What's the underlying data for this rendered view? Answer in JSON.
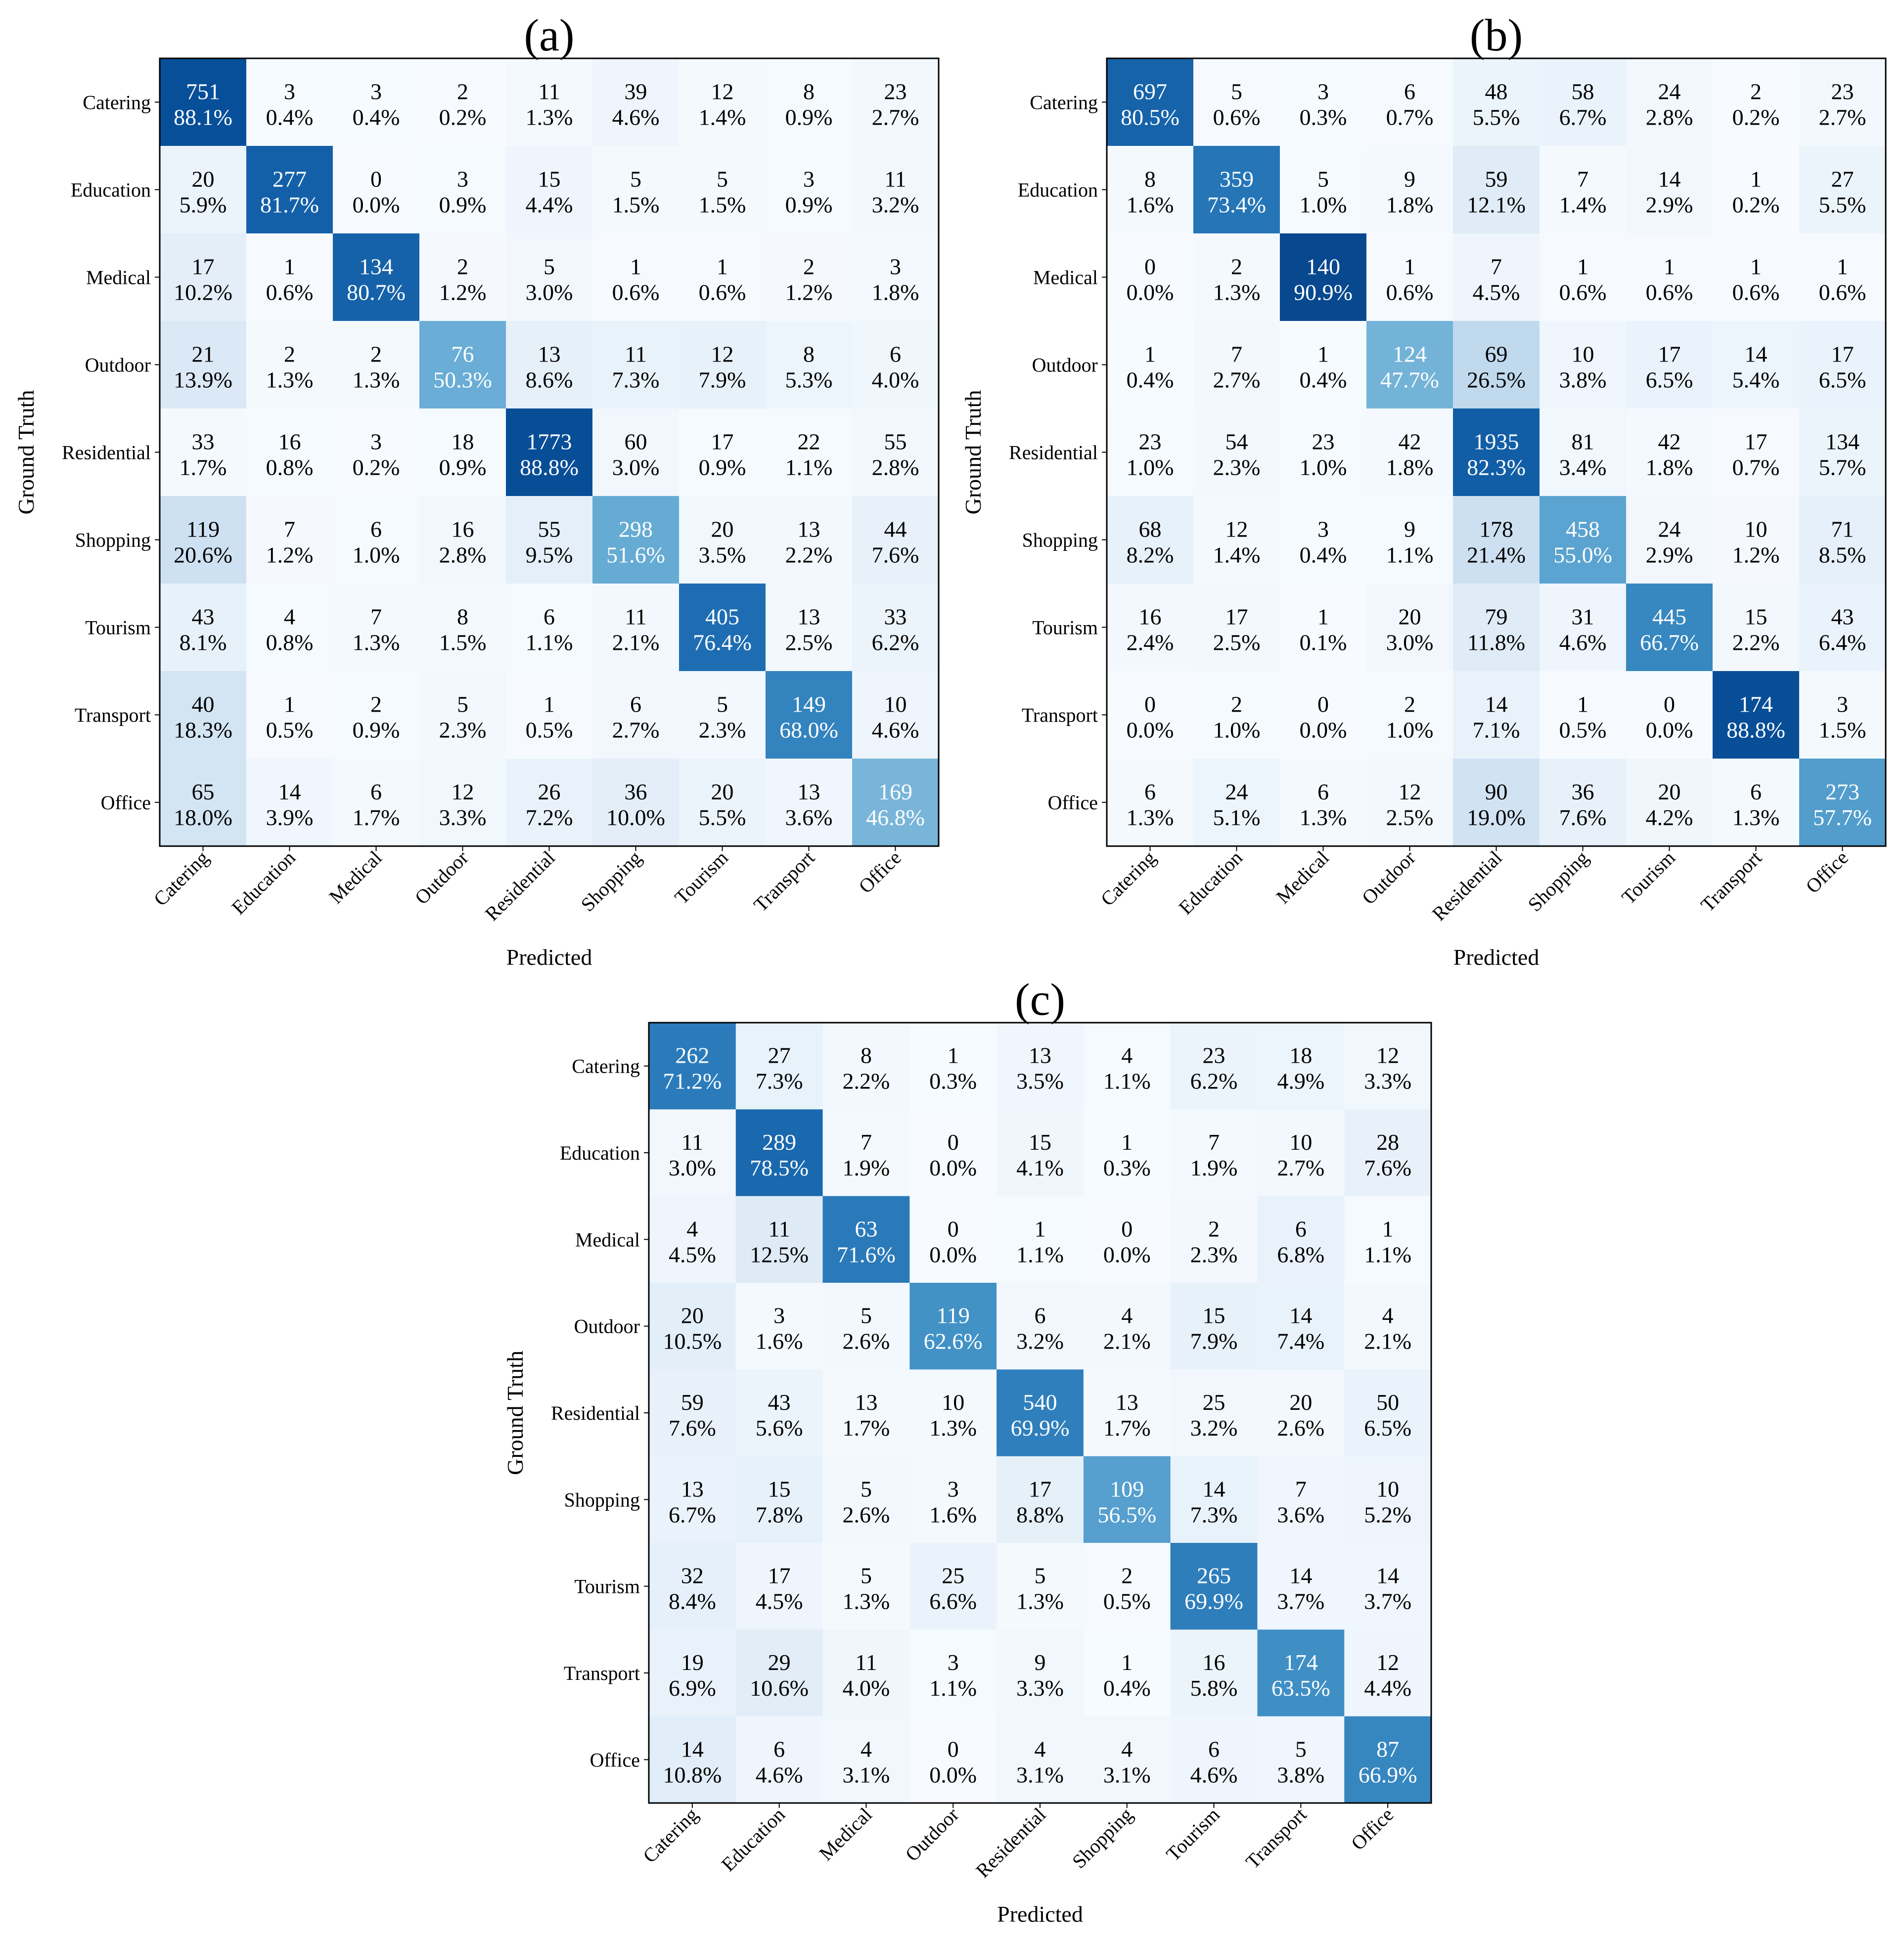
{
  "chart_data": [
    {
      "type": "heatmap",
      "title": "(a)",
      "xlabel": "Predicted",
      "ylabel": "Ground Truth",
      "categories": [
        "Catering",
        "Education",
        "Medical",
        "Outdoor",
        "Residential",
        "Shopping",
        "Tourism",
        "Transport",
        "Office"
      ],
      "counts": [
        [
          751,
          3,
          3,
          2,
          11,
          39,
          12,
          8,
          23
        ],
        [
          20,
          277,
          0,
          3,
          15,
          5,
          5,
          3,
          11
        ],
        [
          17,
          1,
          134,
          2,
          5,
          1,
          1,
          2,
          3
        ],
        [
          21,
          2,
          2,
          76,
          13,
          11,
          12,
          8,
          6
        ],
        [
          33,
          16,
          3,
          18,
          1773,
          60,
          17,
          22,
          55
        ],
        [
          119,
          7,
          6,
          16,
          55,
          298,
          20,
          13,
          44
        ],
        [
          43,
          4,
          7,
          8,
          6,
          11,
          405,
          13,
          33
        ],
        [
          40,
          1,
          2,
          5,
          1,
          6,
          5,
          149,
          10
        ],
        [
          65,
          14,
          6,
          12,
          26,
          36,
          20,
          13,
          169
        ]
      ],
      "percents": [
        [
          "88.1%",
          "0.4%",
          "0.4%",
          "0.2%",
          "1.3%",
          "4.6%",
          "1.4%",
          "0.9%",
          "2.7%"
        ],
        [
          "5.9%",
          "81.7%",
          "0.0%",
          "0.9%",
          "4.4%",
          "1.5%",
          "1.5%",
          "0.9%",
          "3.2%"
        ],
        [
          "10.2%",
          "0.6%",
          "80.7%",
          "1.2%",
          "3.0%",
          "0.6%",
          "0.6%",
          "1.2%",
          "1.8%"
        ],
        [
          "13.9%",
          "1.3%",
          "1.3%",
          "50.3%",
          "8.6%",
          "7.3%",
          "7.9%",
          "5.3%",
          "4.0%"
        ],
        [
          "1.7%",
          "0.8%",
          "0.2%",
          "0.9%",
          "88.8%",
          "3.0%",
          "0.9%",
          "1.1%",
          "2.8%"
        ],
        [
          "20.6%",
          "1.2%",
          "1.0%",
          "2.8%",
          "9.5%",
          "51.6%",
          "3.5%",
          "2.2%",
          "7.6%"
        ],
        [
          "8.1%",
          "0.8%",
          "1.3%",
          "1.5%",
          "1.1%",
          "2.1%",
          "76.4%",
          "2.5%",
          "6.2%"
        ],
        [
          "18.3%",
          "0.5%",
          "0.9%",
          "2.3%",
          "0.5%",
          "2.7%",
          "2.3%",
          "68.0%",
          "4.6%"
        ],
        [
          "18.0%",
          "3.9%",
          "1.7%",
          "3.3%",
          "7.2%",
          "10.0%",
          "5.5%",
          "3.6%",
          "46.8%"
        ]
      ],
      "colormap": "Blues"
    },
    {
      "type": "heatmap",
      "title": "(b)",
      "xlabel": "Predicted",
      "ylabel": "Ground Truth",
      "categories": [
        "Catering",
        "Education",
        "Medical",
        "Outdoor",
        "Residential",
        "Shopping",
        "Tourism",
        "Transport",
        "Office"
      ],
      "counts": [
        [
          697,
          5,
          3,
          6,
          48,
          58,
          24,
          2,
          23
        ],
        [
          8,
          359,
          5,
          9,
          59,
          7,
          14,
          1,
          27
        ],
        [
          0,
          2,
          140,
          1,
          7,
          1,
          1,
          1,
          1
        ],
        [
          1,
          7,
          1,
          124,
          69,
          10,
          17,
          14,
          17
        ],
        [
          23,
          54,
          23,
          42,
          1935,
          81,
          42,
          17,
          134
        ],
        [
          68,
          12,
          3,
          9,
          178,
          458,
          24,
          10,
          71
        ],
        [
          16,
          17,
          1,
          20,
          79,
          31,
          445,
          15,
          43
        ],
        [
          0,
          2,
          0,
          2,
          14,
          1,
          0,
          174,
          3
        ],
        [
          6,
          24,
          6,
          12,
          90,
          36,
          20,
          6,
          273
        ]
      ],
      "percents": [
        [
          "80.5%",
          "0.6%",
          "0.3%",
          "0.7%",
          "5.5%",
          "6.7%",
          "2.8%",
          "0.2%",
          "2.7%"
        ],
        [
          "1.6%",
          "73.4%",
          "1.0%",
          "1.8%",
          "12.1%",
          "1.4%",
          "2.9%",
          "0.2%",
          "5.5%"
        ],
        [
          "0.0%",
          "1.3%",
          "90.9%",
          "0.6%",
          "4.5%",
          "0.6%",
          "0.6%",
          "0.6%",
          "0.6%"
        ],
        [
          "0.4%",
          "2.7%",
          "0.4%",
          "47.7%",
          "26.5%",
          "3.8%",
          "6.5%",
          "5.4%",
          "6.5%"
        ],
        [
          "1.0%",
          "2.3%",
          "1.0%",
          "1.8%",
          "82.3%",
          "3.4%",
          "1.8%",
          "0.7%",
          "5.7%"
        ],
        [
          "8.2%",
          "1.4%",
          "0.4%",
          "1.1%",
          "21.4%",
          "55.0%",
          "2.9%",
          "1.2%",
          "8.5%"
        ],
        [
          "2.4%",
          "2.5%",
          "0.1%",
          "3.0%",
          "11.8%",
          "4.6%",
          "66.7%",
          "2.2%",
          "6.4%"
        ],
        [
          "0.0%",
          "1.0%",
          "0.0%",
          "1.0%",
          "7.1%",
          "0.5%",
          "0.0%",
          "88.8%",
          "1.5%"
        ],
        [
          "1.3%",
          "5.1%",
          "1.3%",
          "2.5%",
          "19.0%",
          "7.6%",
          "4.2%",
          "1.3%",
          "57.7%"
        ]
      ],
      "colormap": "Blues"
    },
    {
      "type": "heatmap",
      "title": "(c)",
      "xlabel": "Predicted",
      "ylabel": "Ground Truth",
      "categories": [
        "Catering",
        "Education",
        "Medical",
        "Outdoor",
        "Residential",
        "Shopping",
        "Tourism",
        "Transport",
        "Office"
      ],
      "counts": [
        [
          262,
          27,
          8,
          1,
          13,
          4,
          23,
          18,
          12
        ],
        [
          11,
          289,
          7,
          0,
          15,
          1,
          7,
          10,
          28
        ],
        [
          4,
          11,
          63,
          0,
          1,
          0,
          2,
          6,
          1
        ],
        [
          20,
          3,
          5,
          119,
          6,
          4,
          15,
          14,
          4
        ],
        [
          59,
          43,
          13,
          10,
          540,
          13,
          25,
          20,
          50
        ],
        [
          13,
          15,
          5,
          3,
          17,
          109,
          14,
          7,
          10
        ],
        [
          32,
          17,
          5,
          25,
          5,
          2,
          265,
          14,
          14
        ],
        [
          19,
          29,
          11,
          3,
          9,
          1,
          16,
          174,
          12
        ],
        [
          14,
          6,
          4,
          0,
          4,
          4,
          6,
          5,
          87
        ]
      ],
      "percents": [
        [
          "71.2%",
          "7.3%",
          "2.2%",
          "0.3%",
          "3.5%",
          "1.1%",
          "6.2%",
          "4.9%",
          "3.3%"
        ],
        [
          "3.0%",
          "78.5%",
          "1.9%",
          "0.0%",
          "4.1%",
          "0.3%",
          "1.9%",
          "2.7%",
          "7.6%"
        ],
        [
          "4.5%",
          "12.5%",
          "71.6%",
          "0.0%",
          "1.1%",
          "0.0%",
          "2.3%",
          "6.8%",
          "1.1%"
        ],
        [
          "10.5%",
          "1.6%",
          "2.6%",
          "62.6%",
          "3.2%",
          "2.1%",
          "7.9%",
          "7.4%",
          "2.1%"
        ],
        [
          "7.6%",
          "5.6%",
          "1.7%",
          "1.3%",
          "69.9%",
          "1.7%",
          "3.2%",
          "2.6%",
          "6.5%"
        ],
        [
          "6.7%",
          "7.8%",
          "2.6%",
          "1.6%",
          "8.8%",
          "56.5%",
          "7.3%",
          "3.6%",
          "5.2%"
        ],
        [
          "8.4%",
          "4.5%",
          "1.3%",
          "6.6%",
          "1.3%",
          "0.5%",
          "69.9%",
          "3.7%",
          "3.7%"
        ],
        [
          "6.9%",
          "10.6%",
          "4.0%",
          "1.1%",
          "3.3%",
          "0.4%",
          "5.8%",
          "63.5%",
          "4.4%"
        ],
        [
          "10.8%",
          "4.6%",
          "3.1%",
          "0.0%",
          "3.1%",
          "3.1%",
          "4.6%",
          "3.8%",
          "66.9%"
        ]
      ],
      "colormap": "Blues"
    }
  ]
}
